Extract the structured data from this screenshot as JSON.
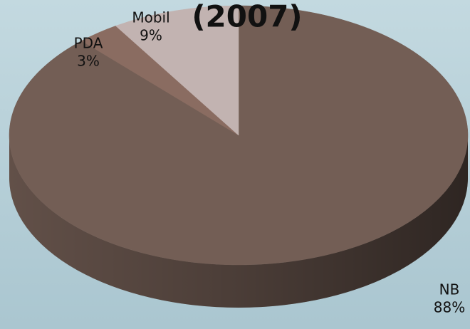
{
  "chart_data": {
    "type": "pie",
    "title": "(2007)",
    "categories": [
      "NB",
      "PDA",
      "Mobil"
    ],
    "values": [
      88,
      3,
      9
    ],
    "value_labels": [
      "88%",
      "3%",
      "9%"
    ],
    "colors": [
      "#735e55",
      "#8a6c61",
      "#c2b3b1"
    ]
  }
}
